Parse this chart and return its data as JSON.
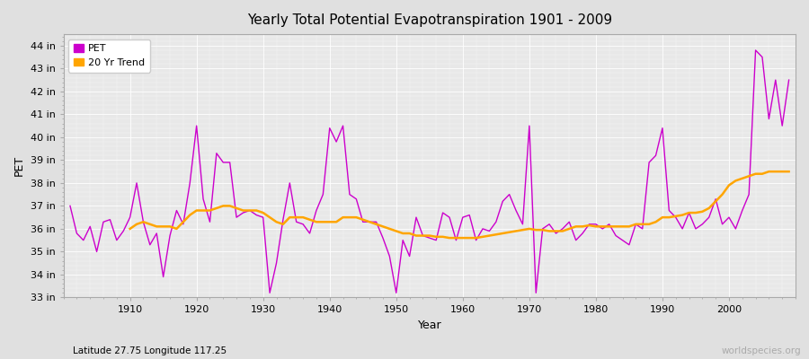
{
  "title": "Yearly Total Potential Evapotranspiration 1901 - 2009",
  "xlabel": "Year",
  "ylabel": "PET",
  "subtitle_left": "Latitude 27.75 Longitude 117.25",
  "subtitle_right": "worldspecies.org",
  "pet_color": "#cc00cc",
  "trend_color": "#ffa500",
  "fig_bg_color": "#e0e0e0",
  "plot_bg_color": "#e8e8e8",
  "ylim": [
    33,
    44.5
  ],
  "yticks": [
    33,
    34,
    35,
    36,
    37,
    38,
    39,
    40,
    41,
    42,
    43,
    44
  ],
  "ytick_labels": [
    "33 in",
    "34 in",
    "35 in",
    "36 in",
    "37 in",
    "38 in",
    "39 in",
    "40 in",
    "41 in",
    "42 in",
    "43 in",
    "44 in"
  ],
  "xlim": [
    1900,
    2010
  ],
  "xticks": [
    1910,
    1920,
    1930,
    1940,
    1950,
    1960,
    1970,
    1980,
    1990,
    2000
  ],
  "years": [
    1901,
    1902,
    1903,
    1904,
    1905,
    1906,
    1907,
    1908,
    1909,
    1910,
    1911,
    1912,
    1913,
    1914,
    1915,
    1916,
    1917,
    1918,
    1919,
    1920,
    1921,
    1922,
    1923,
    1924,
    1925,
    1926,
    1927,
    1928,
    1929,
    1930,
    1931,
    1932,
    1933,
    1934,
    1935,
    1936,
    1937,
    1938,
    1939,
    1940,
    1941,
    1942,
    1943,
    1944,
    1945,
    1946,
    1947,
    1948,
    1949,
    1950,
    1951,
    1952,
    1953,
    1954,
    1955,
    1956,
    1957,
    1958,
    1959,
    1960,
    1961,
    1962,
    1963,
    1964,
    1965,
    1966,
    1967,
    1968,
    1969,
    1970,
    1971,
    1972,
    1973,
    1974,
    1975,
    1976,
    1977,
    1978,
    1979,
    1980,
    1981,
    1982,
    1983,
    1984,
    1985,
    1986,
    1987,
    1988,
    1989,
    1990,
    1991,
    1992,
    1993,
    1994,
    1995,
    1996,
    1997,
    1998,
    1999,
    2000,
    2001,
    2002,
    2003,
    2004,
    2005,
    2006,
    2007,
    2008,
    2009
  ],
  "pet_values": [
    37.0,
    35.8,
    35.5,
    36.1,
    35.0,
    36.3,
    36.4,
    35.5,
    35.9,
    36.5,
    38.0,
    36.3,
    35.3,
    35.8,
    33.9,
    35.7,
    36.8,
    36.2,
    38.0,
    40.5,
    37.3,
    36.3,
    39.3,
    38.9,
    38.9,
    36.5,
    36.7,
    36.8,
    36.6,
    36.5,
    33.2,
    34.5,
    36.4,
    38.0,
    36.3,
    36.2,
    35.8,
    36.8,
    37.5,
    40.4,
    39.8,
    40.5,
    37.5,
    37.3,
    36.3,
    36.3,
    36.3,
    35.6,
    34.8,
    33.2,
    35.5,
    34.8,
    36.5,
    35.7,
    35.6,
    35.5,
    36.7,
    36.5,
    35.5,
    36.5,
    36.6,
    35.5,
    36.0,
    35.9,
    36.3,
    37.2,
    37.5,
    36.8,
    36.2,
    40.5,
    33.2,
    36.0,
    36.2,
    35.8,
    36.0,
    36.3,
    35.5,
    35.8,
    36.2,
    36.2,
    36.0,
    36.2,
    35.7,
    35.5,
    35.3,
    36.2,
    36.0,
    38.9,
    39.2,
    40.4,
    36.8,
    36.5,
    36.0,
    36.7,
    36.0,
    36.2,
    36.5,
    37.3,
    36.2,
    36.5,
    36.0,
    36.8,
    37.5,
    43.8,
    43.5,
    40.8,
    42.5,
    40.5,
    42.5
  ],
  "trend_values": [
    null,
    null,
    null,
    null,
    null,
    null,
    null,
    null,
    null,
    36.0,
    36.2,
    36.3,
    36.2,
    36.1,
    36.1,
    36.1,
    36.0,
    36.3,
    36.6,
    36.8,
    36.8,
    36.8,
    36.9,
    37.0,
    37.0,
    36.9,
    36.8,
    36.8,
    36.8,
    36.7,
    36.5,
    36.3,
    36.2,
    36.5,
    36.5,
    36.5,
    36.4,
    36.3,
    36.3,
    36.3,
    36.3,
    36.5,
    36.5,
    36.5,
    36.4,
    36.3,
    36.2,
    36.1,
    36.0,
    35.9,
    35.8,
    35.8,
    35.7,
    35.7,
    35.7,
    35.65,
    35.65,
    35.6,
    35.6,
    35.6,
    35.6,
    35.6,
    35.65,
    35.7,
    35.75,
    35.8,
    35.85,
    35.9,
    35.95,
    36.0,
    35.95,
    35.95,
    35.9,
    35.9,
    35.9,
    36.0,
    36.1,
    36.1,
    36.15,
    36.1,
    36.1,
    36.1,
    36.1,
    36.1,
    36.1,
    36.2,
    36.2,
    36.2,
    36.3,
    36.5,
    36.5,
    36.55,
    36.6,
    36.7,
    36.7,
    36.75,
    36.9,
    37.2,
    37.5,
    37.9,
    38.1,
    38.2,
    38.3,
    38.4,
    38.4,
    38.5,
    38.5,
    38.5,
    38.5
  ]
}
